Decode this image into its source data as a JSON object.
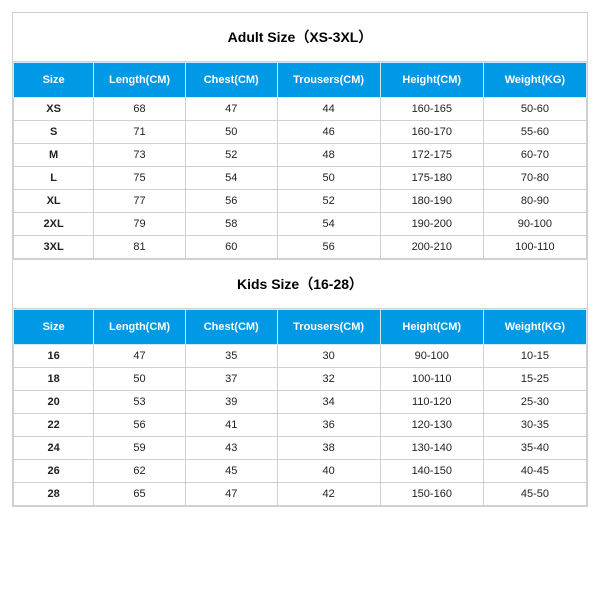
{
  "adult": {
    "title": "Adult Size（XS-3XL）",
    "columns": [
      "Size",
      "Length(CM)",
      "Chest(CM)",
      "Trousers(CM)",
      "Height(CM)",
      "Weight(KG)"
    ],
    "rows": [
      [
        "XS",
        "68",
        "47",
        "44",
        "160-165",
        "50-60"
      ],
      [
        "S",
        "71",
        "50",
        "46",
        "160-170",
        "55-60"
      ],
      [
        "M",
        "73",
        "52",
        "48",
        "172-175",
        "60-70"
      ],
      [
        "L",
        "75",
        "54",
        "50",
        "175-180",
        "70-80"
      ],
      [
        "XL",
        "77",
        "56",
        "52",
        "180-190",
        "80-90"
      ],
      [
        "2XL",
        "79",
        "58",
        "54",
        "190-200",
        "90-100"
      ],
      [
        "3XL",
        "81",
        "60",
        "56",
        "200-210",
        "100-110"
      ]
    ]
  },
  "kids": {
    "title": "Kids Size（16-28）",
    "columns": [
      "Size",
      "Length(CM)",
      "Chest(CM)",
      "Trousers(CM)",
      "Height(CM)",
      "Weight(KG)"
    ],
    "rows": [
      [
        "16",
        "47",
        "35",
        "30",
        "90-100",
        "10-15"
      ],
      [
        "18",
        "50",
        "37",
        "32",
        "100-110",
        "15-25"
      ],
      [
        "20",
        "53",
        "39",
        "34",
        "110-120",
        "25-30"
      ],
      [
        "22",
        "56",
        "41",
        "36",
        "120-130",
        "30-35"
      ],
      [
        "24",
        "59",
        "43",
        "38",
        "130-140",
        "35-40"
      ],
      [
        "26",
        "62",
        "45",
        "40",
        "140-150",
        "40-45"
      ],
      [
        "28",
        "65",
        "47",
        "42",
        "150-160",
        "45-50"
      ]
    ]
  },
  "style": {
    "header_bg": "#0099e5",
    "header_fg": "#ffffff",
    "border_color": "#d0d0d0",
    "header_border": "#cceaf8",
    "title_fontsize": 14,
    "cell_fontsize": 11,
    "col_widths_pct": [
      14,
      16,
      16,
      18,
      18,
      18
    ]
  }
}
